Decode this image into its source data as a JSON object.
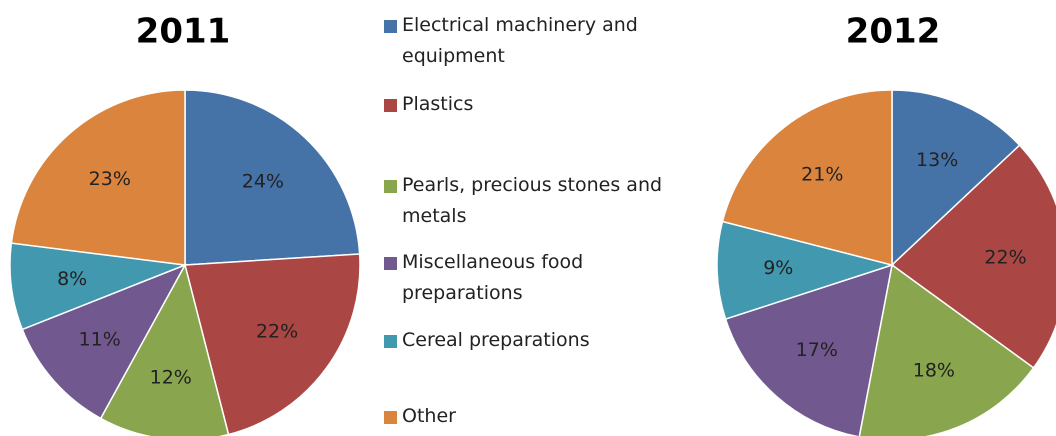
{
  "chart_data": [
    {
      "type": "pie",
      "title": "2011",
      "categories": [
        "Electrical machinery and equipment",
        "Plastics",
        "Pearls, precious stones and metals",
        "Miscellaneous food preparations",
        "Cereal preparations",
        "Other"
      ],
      "colors": [
        "#4572a7",
        "#aa4643",
        "#89a54e",
        "#71588f",
        "#4198af",
        "#db843d"
      ],
      "values": [
        24,
        22,
        12,
        11,
        8,
        23
      ],
      "value_labels": [
        "24%",
        "22%",
        "12%",
        "11%",
        "8%",
        "23%"
      ]
    },
    {
      "type": "pie",
      "title": "2012",
      "values": [
        13,
        22,
        18,
        17,
        9,
        21
      ],
      "value_labels": [
        "13%",
        "22%",
        "18%",
        "17%",
        "9%",
        "21%"
      ]
    }
  ]
}
